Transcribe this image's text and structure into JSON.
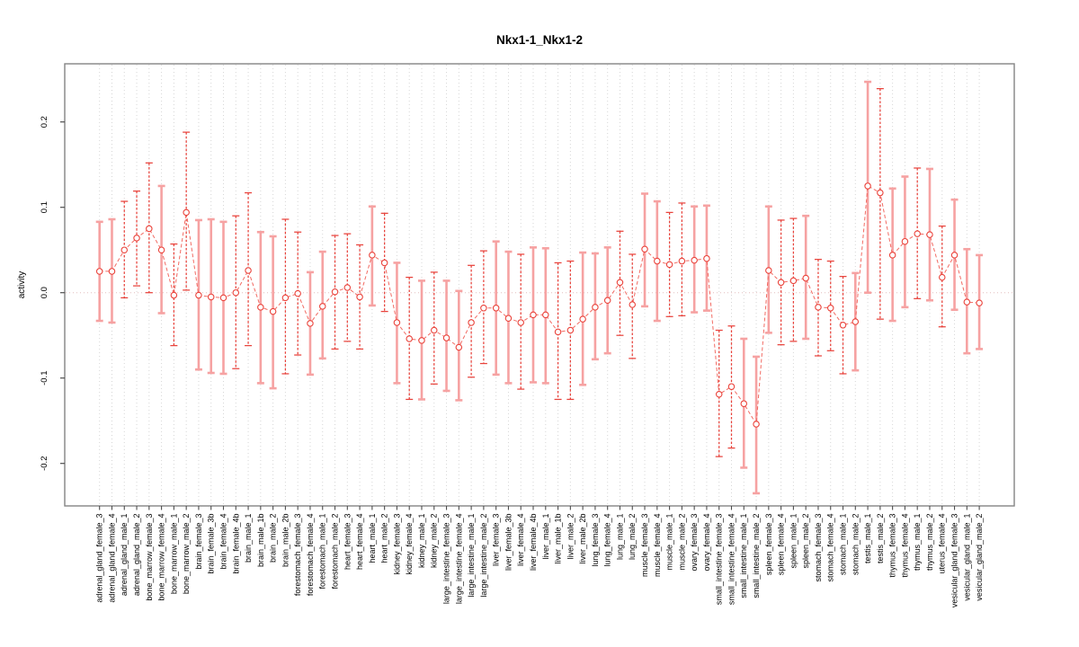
{
  "chart_data": {
    "type": "line",
    "subtype": "points-with-error-bars",
    "title": "Nkx1-1_Nkx1-2",
    "xlabel": "",
    "ylabel": "activity",
    "ylim": [
      -0.25,
      0.267
    ],
    "yticks": [
      -0.2,
      -0.1,
      0.0,
      0.1,
      0.2
    ],
    "ytick_labels": [
      "-0.2",
      "-0.1",
      "0.0",
      "0.1",
      "0.2"
    ],
    "grid": "vertical-dotted-per-category",
    "zero_line": "dotted",
    "legend": "none",
    "marker": "open-circle",
    "colors": {
      "point_stroke": "#ea433b",
      "line": "#f15b52",
      "bar_solid": "#f6a2a2",
      "bar_dashed": "#e8433c",
      "box": "#848484",
      "gridline": "#d6d6d6",
      "zero_line": "#e3bdbd",
      "tick": "#4d4d4d"
    },
    "points": [
      {
        "label": "adrenal_gland_female_3",
        "value": 0.025,
        "lo": -0.033,
        "hi": 0.083,
        "style": "solid"
      },
      {
        "label": "adrenal_gland_female_4",
        "value": 0.025,
        "lo": -0.035,
        "hi": 0.086,
        "style": "solid"
      },
      {
        "label": "adrenal_gland_male_1",
        "value": 0.05,
        "lo": -0.006,
        "hi": 0.107,
        "style": "dashed"
      },
      {
        "label": "adrenal_gland_male_2",
        "value": 0.064,
        "lo": 0.008,
        "hi": 0.119,
        "style": "dashed"
      },
      {
        "label": "bone_marrow_female_3",
        "value": 0.075,
        "lo": 0.0,
        "hi": 0.152,
        "style": "dashed"
      },
      {
        "label": "bone_marrow_female_4",
        "value": 0.05,
        "lo": -0.024,
        "hi": 0.125,
        "style": "solid"
      },
      {
        "label": "bone_marrow_male_1",
        "value": -0.003,
        "lo": -0.062,
        "hi": 0.057,
        "style": "dashed"
      },
      {
        "label": "bone_marrow_male_2",
        "value": 0.094,
        "lo": 0.003,
        "hi": 0.188,
        "style": "dashed"
      },
      {
        "label": "brain_female_3",
        "value": -0.003,
        "lo": -0.09,
        "hi": 0.085,
        "style": "solid"
      },
      {
        "label": "brain_female_3b",
        "value": -0.005,
        "lo": -0.094,
        "hi": 0.086,
        "style": "solid"
      },
      {
        "label": "brain_female_4",
        "value": -0.006,
        "lo": -0.095,
        "hi": 0.083,
        "style": "solid"
      },
      {
        "label": "brain_female_4b",
        "value": 0.0,
        "lo": -0.089,
        "hi": 0.09,
        "style": "dashed"
      },
      {
        "label": "brain_male_1",
        "value": 0.026,
        "lo": -0.062,
        "hi": 0.117,
        "style": "dashed"
      },
      {
        "label": "brain_male_1b",
        "value": -0.017,
        "lo": -0.106,
        "hi": 0.071,
        "style": "solid"
      },
      {
        "label": "brain_male_2",
        "value": -0.022,
        "lo": -0.112,
        "hi": 0.066,
        "style": "solid"
      },
      {
        "label": "brain_male_2b",
        "value": -0.006,
        "lo": -0.095,
        "hi": 0.086,
        "style": "dashed"
      },
      {
        "label": "forestomach_female_3",
        "value": -0.001,
        "lo": -0.073,
        "hi": 0.071,
        "style": "dashed"
      },
      {
        "label": "forestomach_female_4",
        "value": -0.036,
        "lo": -0.096,
        "hi": 0.024,
        "style": "solid"
      },
      {
        "label": "forestomach_male_1",
        "value": -0.016,
        "lo": -0.077,
        "hi": 0.048,
        "style": "solid"
      },
      {
        "label": "forestomach_male_2",
        "value": 0.001,
        "lo": -0.066,
        "hi": 0.067,
        "style": "dashed"
      },
      {
        "label": "heart_female_3",
        "value": 0.006,
        "lo": -0.057,
        "hi": 0.069,
        "style": "dashed"
      },
      {
        "label": "heart_female_4",
        "value": -0.005,
        "lo": -0.066,
        "hi": 0.056,
        "style": "dashed"
      },
      {
        "label": "heart_male_1",
        "value": 0.044,
        "lo": -0.015,
        "hi": 0.101,
        "style": "solid"
      },
      {
        "label": "heart_male_2",
        "value": 0.035,
        "lo": -0.022,
        "hi": 0.093,
        "style": "dashed"
      },
      {
        "label": "kidney_female_3",
        "value": -0.035,
        "lo": -0.106,
        "hi": 0.035,
        "style": "solid"
      },
      {
        "label": "kidney_female_4",
        "value": -0.054,
        "lo": -0.125,
        "hi": 0.018,
        "style": "dashed"
      },
      {
        "label": "kidney_male_1",
        "value": -0.056,
        "lo": -0.125,
        "hi": 0.014,
        "style": "solid"
      },
      {
        "label": "kidney_male_2",
        "value": -0.044,
        "lo": -0.107,
        "hi": 0.024,
        "style": "dashed"
      },
      {
        "label": "large_intestine_female_3",
        "value": -0.053,
        "lo": -0.115,
        "hi": 0.014,
        "style": "solid"
      },
      {
        "label": "large_intestine_female_4",
        "value": -0.064,
        "lo": -0.126,
        "hi": 0.002,
        "style": "solid"
      },
      {
        "label": "large_intestine_male_1",
        "value": -0.035,
        "lo": -0.099,
        "hi": 0.032,
        "style": "dashed"
      },
      {
        "label": "large_intestine_male_2",
        "value": -0.018,
        "lo": -0.083,
        "hi": 0.049,
        "style": "dashed"
      },
      {
        "label": "liver_female_3",
        "value": -0.018,
        "lo": -0.096,
        "hi": 0.06,
        "style": "solid"
      },
      {
        "label": "liver_female_3b",
        "value": -0.03,
        "lo": -0.106,
        "hi": 0.048,
        "style": "solid"
      },
      {
        "label": "liver_female_4",
        "value": -0.035,
        "lo": -0.113,
        "hi": 0.045,
        "style": "dashed"
      },
      {
        "label": "liver_female_4b",
        "value": -0.026,
        "lo": -0.105,
        "hi": 0.053,
        "style": "solid"
      },
      {
        "label": "liver_male_1",
        "value": -0.026,
        "lo": -0.106,
        "hi": 0.052,
        "style": "solid"
      },
      {
        "label": "liver_male_1b",
        "value": -0.046,
        "lo": -0.125,
        "hi": 0.035,
        "style": "dashed"
      },
      {
        "label": "liver_male_2",
        "value": -0.044,
        "lo": -0.125,
        "hi": 0.037,
        "style": "dashed"
      },
      {
        "label": "liver_male_2b",
        "value": -0.031,
        "lo": -0.108,
        "hi": 0.047,
        "style": "solid"
      },
      {
        "label": "lung_female_3",
        "value": -0.017,
        "lo": -0.078,
        "hi": 0.046,
        "style": "solid"
      },
      {
        "label": "lung_female_4",
        "value": -0.009,
        "lo": -0.071,
        "hi": 0.053,
        "style": "solid"
      },
      {
        "label": "lung_male_1",
        "value": 0.012,
        "lo": -0.05,
        "hi": 0.072,
        "style": "dashed"
      },
      {
        "label": "lung_male_2",
        "value": -0.014,
        "lo": -0.077,
        "hi": 0.045,
        "style": "dashed"
      },
      {
        "label": "muscle_female_3",
        "value": 0.051,
        "lo": -0.016,
        "hi": 0.116,
        "style": "solid"
      },
      {
        "label": "muscle_female_4",
        "value": 0.037,
        "lo": -0.033,
        "hi": 0.107,
        "style": "solid"
      },
      {
        "label": "muscle_male_1",
        "value": 0.033,
        "lo": -0.028,
        "hi": 0.094,
        "style": "dashed"
      },
      {
        "label": "muscle_male_2",
        "value": 0.037,
        "lo": -0.027,
        "hi": 0.105,
        "style": "dashed"
      },
      {
        "label": "ovary_female_3",
        "value": 0.038,
        "lo": -0.023,
        "hi": 0.101,
        "style": "solid"
      },
      {
        "label": "ovary_female_4",
        "value": 0.04,
        "lo": -0.021,
        "hi": 0.102,
        "style": "solid"
      },
      {
        "label": "small_intestine_female_3",
        "value": -0.119,
        "lo": -0.192,
        "hi": -0.044,
        "style": "dashed"
      },
      {
        "label": "small_intestine_female_4",
        "value": -0.11,
        "lo": -0.182,
        "hi": -0.039,
        "style": "dashed"
      },
      {
        "label": "small_intestine_male_1",
        "value": -0.13,
        "lo": -0.205,
        "hi": -0.054,
        "style": "solid"
      },
      {
        "label": "small_intestine_male_2",
        "value": -0.154,
        "lo": -0.235,
        "hi": -0.075,
        "style": "solid"
      },
      {
        "label": "spleen_female_3",
        "value": 0.026,
        "lo": -0.047,
        "hi": 0.101,
        "style": "solid"
      },
      {
        "label": "spleen_female_4",
        "value": 0.012,
        "lo": -0.061,
        "hi": 0.085,
        "style": "dashed"
      },
      {
        "label": "spleen_male_1",
        "value": 0.014,
        "lo": -0.057,
        "hi": 0.087,
        "style": "dashed"
      },
      {
        "label": "spleen_male_2",
        "value": 0.017,
        "lo": -0.054,
        "hi": 0.09,
        "style": "solid"
      },
      {
        "label": "stomach_female_3",
        "value": -0.017,
        "lo": -0.074,
        "hi": 0.039,
        "style": "dashed"
      },
      {
        "label": "stomach_female_4",
        "value": -0.018,
        "lo": -0.068,
        "hi": 0.037,
        "style": "dashed"
      },
      {
        "label": "stomach_male_1",
        "value": -0.038,
        "lo": -0.095,
        "hi": 0.019,
        "style": "dashed"
      },
      {
        "label": "stomach_male_2",
        "value": -0.034,
        "lo": -0.091,
        "hi": 0.023,
        "style": "solid"
      },
      {
        "label": "testis_male_1",
        "value": 0.125,
        "lo": 0.0,
        "hi": 0.247,
        "style": "solid"
      },
      {
        "label": "testis_male_2",
        "value": 0.117,
        "lo": -0.031,
        "hi": 0.239,
        "style": "dashed"
      },
      {
        "label": "thymus_female_3",
        "value": 0.044,
        "lo": -0.033,
        "hi": 0.122,
        "style": "solid"
      },
      {
        "label": "thymus_female_4",
        "value": 0.06,
        "lo": -0.017,
        "hi": 0.136,
        "style": "solid"
      },
      {
        "label": "thymus_male_1",
        "value": 0.069,
        "lo": -0.007,
        "hi": 0.146,
        "style": "dashed"
      },
      {
        "label": "thymus_male_2",
        "value": 0.068,
        "lo": -0.009,
        "hi": 0.145,
        "style": "solid"
      },
      {
        "label": "uterus_female_4",
        "value": 0.018,
        "lo": -0.04,
        "hi": 0.078,
        "style": "dashed"
      },
      {
        "label": "vesicular_gland_female_3",
        "value": 0.044,
        "lo": -0.02,
        "hi": 0.109,
        "style": "solid"
      },
      {
        "label": "vesicular_gland_male_1",
        "value": -0.011,
        "lo": -0.071,
        "hi": 0.051,
        "style": "solid"
      },
      {
        "label": "vesicular_gland_male_2",
        "value": -0.012,
        "lo": -0.066,
        "hi": 0.044,
        "style": "solid"
      }
    ]
  }
}
